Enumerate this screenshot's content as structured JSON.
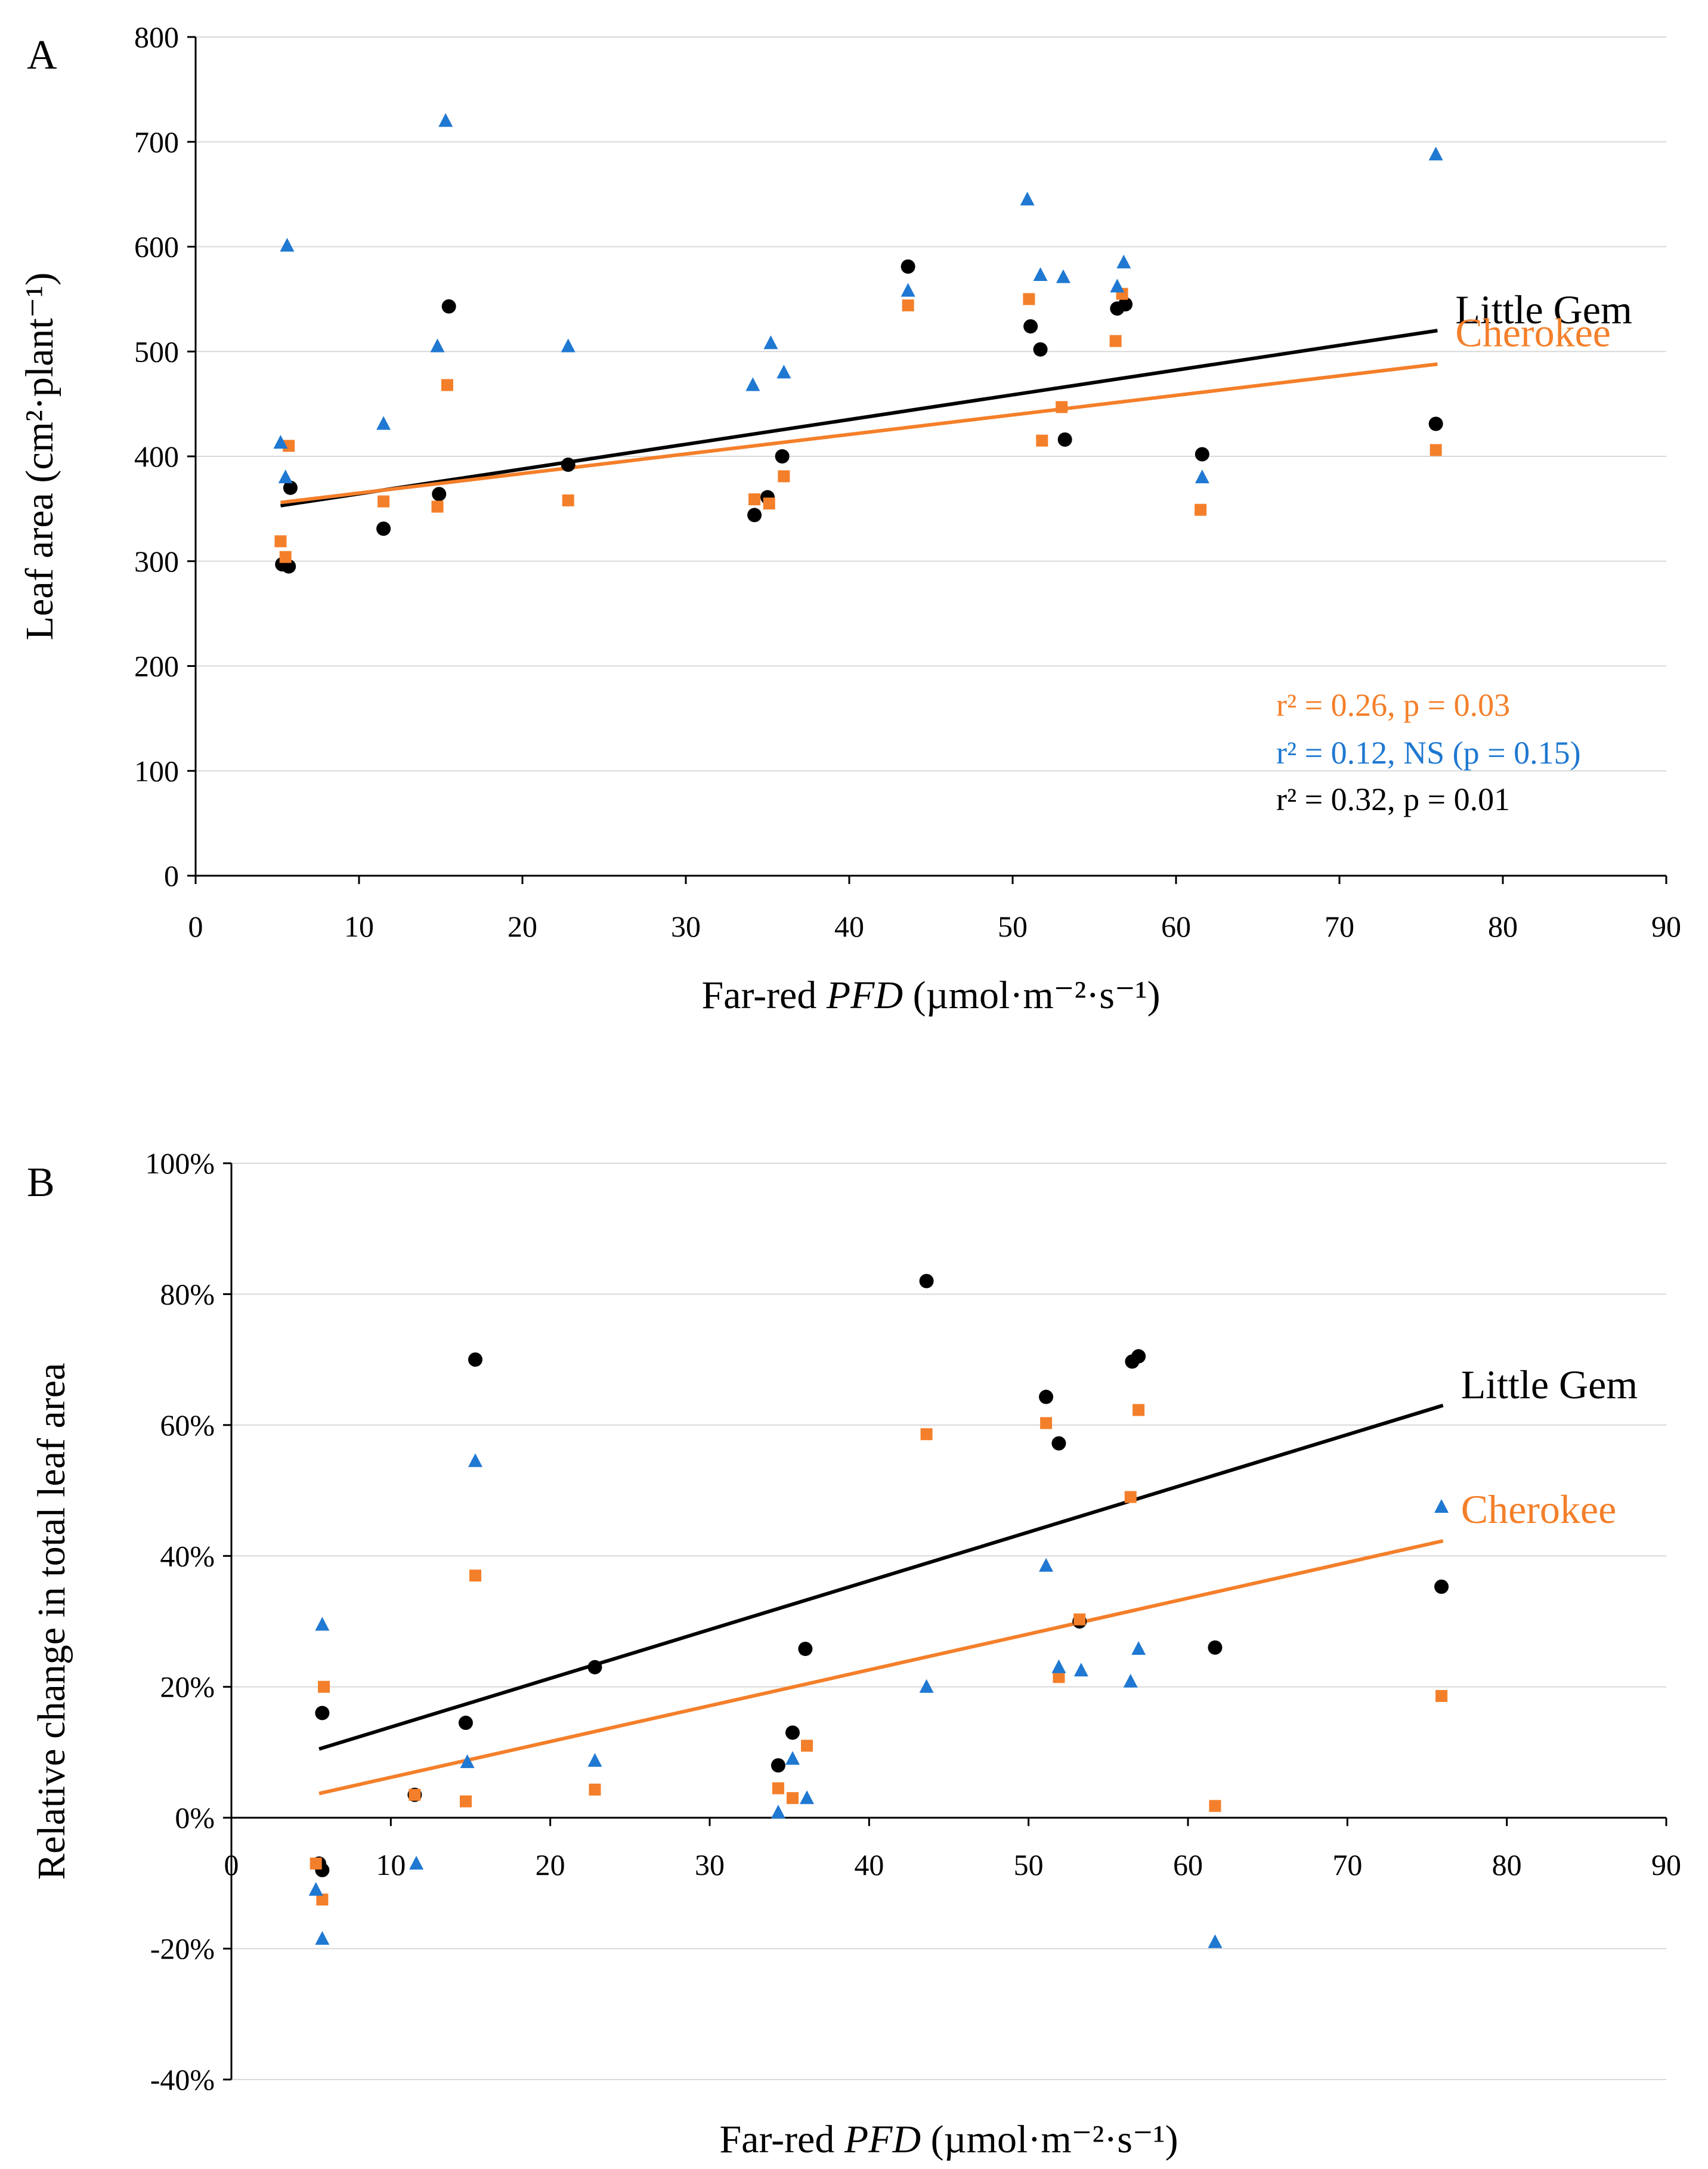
{
  "colors": {
    "little_gem": "#000000",
    "cherokee": "#F47F2A",
    "third": "#1F78D1",
    "grid": "#d9d9d9",
    "axis": "#000000"
  },
  "chart_data": [
    {
      "type": "scatter",
      "panel": "A",
      "xlabel_pre": "Far-red ",
      "xlabel_italic": "PFD",
      "xlabel_unit": " (µmol·m⁻²·s⁻¹)",
      "ylabel": "Leaf area (cm²·plant⁻¹)",
      "xlim": [
        0,
        90
      ],
      "ylim": [
        0,
        800
      ],
      "xticks": [
        0,
        10,
        20,
        30,
        40,
        50,
        60,
        70,
        80,
        90
      ],
      "xtick_labels": [
        "0",
        "10",
        "20",
        "30",
        "40",
        "50",
        "60",
        "70",
        "80",
        "90"
      ],
      "yticks": [
        0,
        100,
        200,
        300,
        400,
        500,
        600,
        700,
        800
      ],
      "ytick_labels": [
        "0",
        "100",
        "200",
        "300",
        "400",
        "500",
        "600",
        "700",
        "800"
      ],
      "grid": "horizontal",
      "series": [
        {
          "name": "Little Gem",
          "marker": "circle",
          "color": "#000000",
          "x": [
            5.3,
            5.7,
            5.8,
            11.5,
            14.9,
            15.5,
            22.8,
            34.2,
            35.0,
            35.9,
            43.6,
            51.1,
            51.7,
            53.2,
            56.4,
            56.9,
            61.6,
            75.9
          ],
          "y": [
            297,
            295,
            370,
            331,
            364,
            543,
            392,
            344,
            361,
            400,
            581,
            524,
            502,
            416,
            541,
            545,
            402,
            431
          ]
        },
        {
          "name": "Cherokee",
          "marker": "square",
          "color": "#F47F2A",
          "x": [
            5.2,
            5.5,
            5.7,
            11.5,
            14.8,
            15.4,
            22.8,
            34.2,
            35.1,
            36.0,
            43.6,
            51.0,
            51.8,
            53.0,
            56.3,
            56.7,
            61.5,
            75.9
          ],
          "y": [
            319,
            304,
            410,
            357,
            352,
            468,
            358,
            359,
            355,
            381,
            544,
            550,
            415,
            447,
            510,
            555,
            349,
            406
          ]
        },
        {
          "name": "",
          "marker": "triangle",
          "color": "#1F78D1",
          "x": [
            5.2,
            5.5,
            5.6,
            11.5,
            14.8,
            15.3,
            22.8,
            34.1,
            35.2,
            36.0,
            43.6,
            50.9,
            51.7,
            53.1,
            56.4,
            56.8,
            61.6,
            75.9
          ],
          "y": [
            413,
            380,
            601,
            431,
            505,
            720,
            505,
            468,
            508,
            480,
            558,
            645,
            573,
            571,
            562,
            585,
            380,
            688
          ]
        }
      ],
      "trendlines": [
        {
          "name": "Little Gem",
          "label": "Little Gem",
          "color": "#000000",
          "x": [
            5.2,
            76
          ],
          "y": [
            353,
            520
          ]
        },
        {
          "name": "Cherokee",
          "label": "Cherokee",
          "color": "#F47F2A",
          "x": [
            5.2,
            76
          ],
          "y": [
            356,
            488
          ]
        }
      ],
      "annotations": [
        {
          "text": "r² = 0.26, p = 0.03",
          "color": "#F47F2A"
        },
        {
          "text": "r² = 0.12, NS (p = 0.15)",
          "color": "#1F78D1"
        },
        {
          "text": "r² = 0.32, p = 0.01",
          "color": "#000000"
        }
      ]
    },
    {
      "type": "scatter",
      "panel": "B",
      "xlabel_pre": "Far-red ",
      "xlabel_italic": "PFD",
      "xlabel_unit": " (µmol·m⁻²·s⁻¹)",
      "ylabel": "Relative change in total leaf area",
      "xlim": [
        0,
        90
      ],
      "ylim": [
        -40,
        100
      ],
      "xticks": [
        0,
        10,
        20,
        30,
        40,
        50,
        60,
        70,
        80,
        90
      ],
      "xtick_labels": [
        "0",
        "10",
        "20",
        "30",
        "40",
        "50",
        "60",
        "70",
        "80",
        "90"
      ],
      "yticks": [
        -40,
        -20,
        0,
        20,
        40,
        60,
        80,
        100
      ],
      "ytick_labels": [
        "-40%",
        "-20%",
        "0%",
        "20%",
        "40%",
        "60%",
        "80%",
        "100%"
      ],
      "grid": "horizontal",
      "series": [
        {
          "name": "Little Gem",
          "marker": "circle",
          "color": "#000000",
          "x": [
            5.5,
            5.7,
            5.7,
            11.5,
            14.7,
            15.3,
            22.8,
            34.3,
            35.2,
            36.0,
            43.6,
            51.1,
            51.9,
            53.2,
            56.5,
            56.9,
            61.7,
            75.9
          ],
          "y": [
            -7,
            -8,
            16,
            3.5,
            14.5,
            70,
            23,
            8,
            13,
            25.8,
            82,
            64.3,
            57.2,
            30,
            69.7,
            70.5,
            26,
            35.3
          ]
        },
        {
          "name": "Cherokee",
          "marker": "square",
          "color": "#F47F2A",
          "x": [
            5.3,
            5.7,
            5.8,
            11.5,
            14.7,
            15.3,
            22.8,
            34.3,
            35.2,
            36.1,
            43.6,
            51.1,
            51.9,
            53.2,
            56.4,
            56.9,
            61.7,
            75.9
          ],
          "y": [
            -7,
            -12.5,
            20,
            3.5,
            2.5,
            37,
            4.3,
            4.5,
            3,
            11,
            58.6,
            60.3,
            21.5,
            30.3,
            49,
            62.3,
            1.8,
            18.6
          ]
        },
        {
          "name": "",
          "marker": "triangle",
          "color": "#1F78D1",
          "x": [
            5.3,
            5.7,
            5.7,
            11.6,
            14.8,
            15.3,
            22.8,
            34.3,
            35.2,
            36.1,
            43.6,
            51.1,
            51.9,
            53.3,
            56.4,
            56.9,
            61.7,
            75.9
          ],
          "y": [
            -11,
            29.5,
            -18.5,
            -7,
            8.5,
            54.5,
            8.7,
            0.8,
            9,
            3,
            20,
            38.5,
            23,
            22.5,
            20.8,
            25.8,
            -19,
            47.5
          ]
        }
      ],
      "trendlines": [
        {
          "name": "Little Gem",
          "label": "Little Gem",
          "color": "#000000",
          "x": [
            5.5,
            76
          ],
          "y": [
            10.5,
            63
          ]
        },
        {
          "name": "Cherokee",
          "label": "Cherokee",
          "color": "#F47F2A",
          "x": [
            5.5,
            76
          ],
          "y": [
            3.7,
            42.3
          ]
        }
      ],
      "annotations": []
    }
  ]
}
